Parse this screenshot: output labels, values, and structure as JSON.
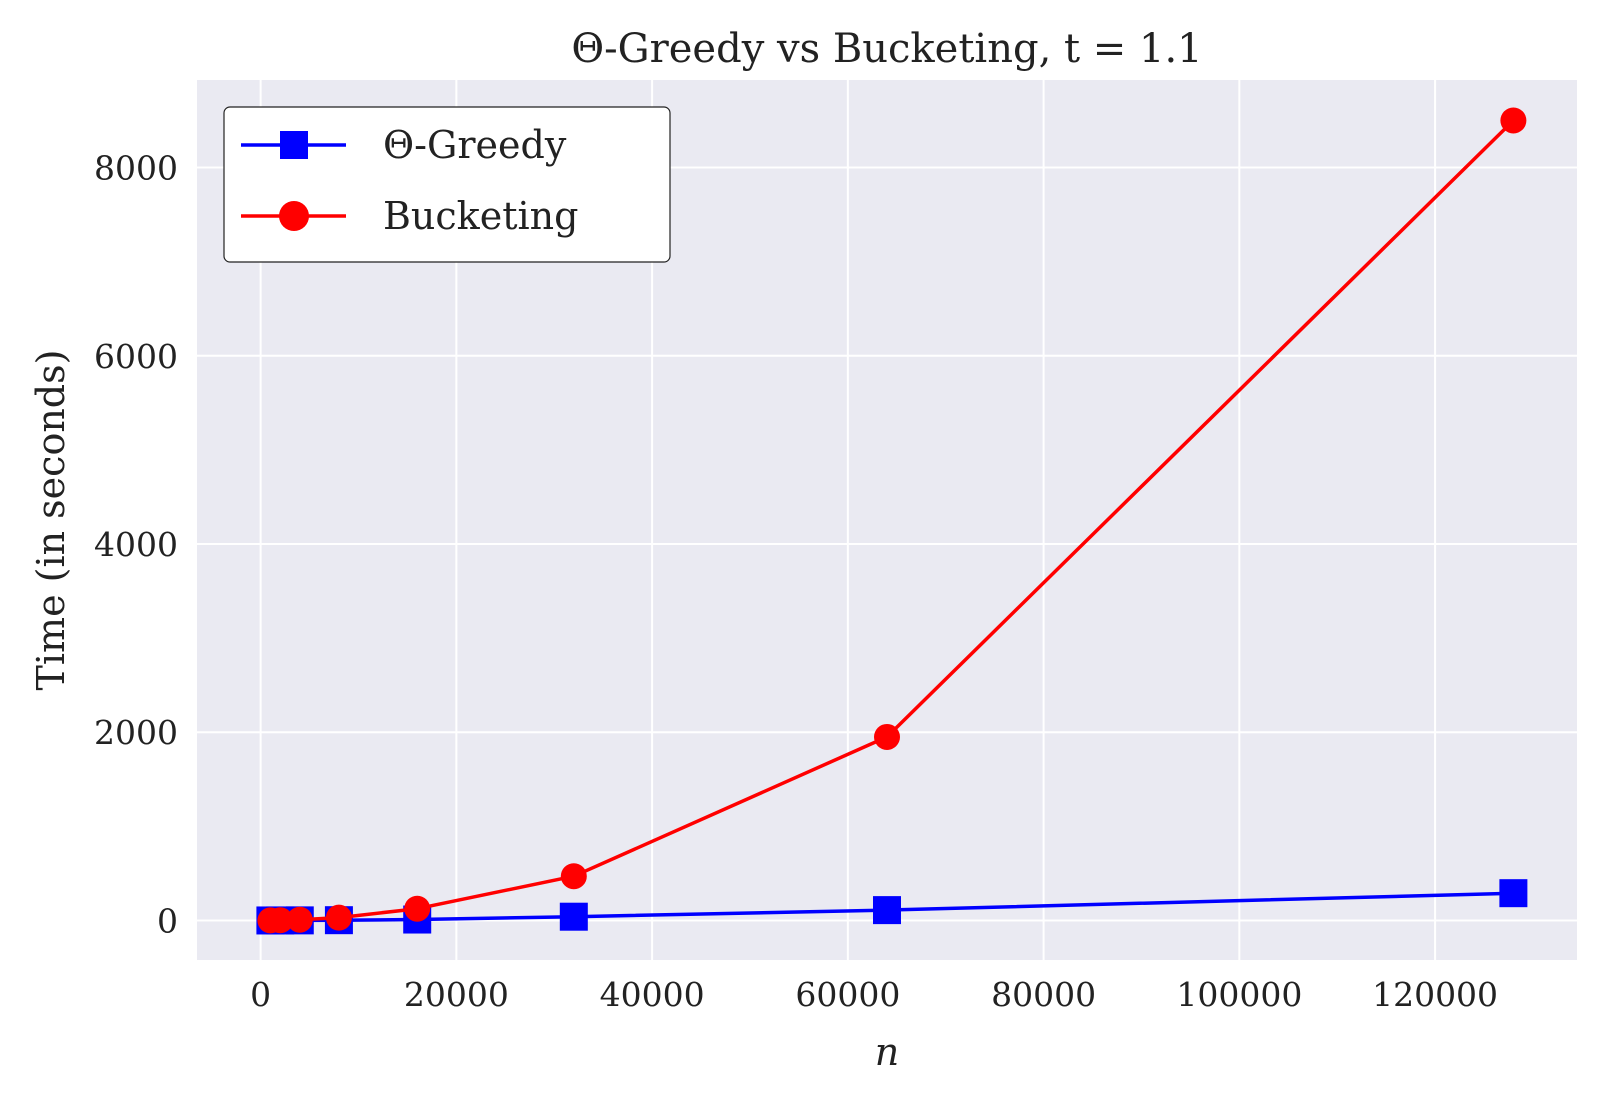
{
  "chart_data": {
    "type": "line",
    "title": "Θ-Greedy vs Bucketing, t = 1.1",
    "xlabel": "n",
    "ylabel": "Time (in seconds)",
    "xlim": [
      -6500,
      134500
    ],
    "ylim": [
      -420,
      8930
    ],
    "x_ticks": [
      0,
      20000,
      40000,
      60000,
      80000,
      100000,
      120000
    ],
    "x_tick_labels": [
      "0",
      "20000",
      "40000",
      "60000",
      "80000",
      "100000",
      "120000"
    ],
    "y_ticks": [
      0,
      2000,
      4000,
      6000,
      8000
    ],
    "y_tick_labels": [
      "0",
      "2000",
      "4000",
      "6000",
      "8000"
    ],
    "grid": true,
    "legend_position": "top-left",
    "x": [
      1000,
      2000,
      4000,
      8000,
      16000,
      32000,
      64000,
      128000
    ],
    "series": [
      {
        "name": "Θ-Greedy",
        "color": "#0000ff",
        "marker": "square",
        "values": [
          0.1,
          0.3,
          1,
          3,
          10,
          40,
          110,
          290
        ]
      },
      {
        "name": "Bucketing",
        "color": "#ff0000",
        "marker": "circle",
        "values": [
          0.5,
          2,
          8,
          30,
          125,
          470,
          1950,
          8500
        ]
      }
    ]
  }
}
